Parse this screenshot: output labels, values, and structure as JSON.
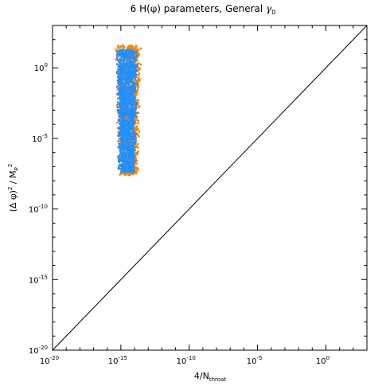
{
  "chart_data": {
    "type": "scatter",
    "title": {
      "pre": "6 H(",
      "phi": "φ",
      "mid": ") parameters, General ",
      "gamma": "γ",
      "sub": "0"
    },
    "xlabel": {
      "main": "4/N",
      "sub": "throat"
    },
    "ylabel": {
      "pre": "(Δ ",
      "phi": "φ",
      "mid": ")",
      "sup": "2",
      "slash": " / M",
      "sub": "P",
      "sup2": "2"
    },
    "xscale": "log",
    "yscale": "log",
    "xlim": [
      1e-20,
      1000.0
    ],
    "ylim": [
      1e-20,
      1000.0
    ],
    "x_ticks": [
      {
        "exp": -20,
        "base": "10",
        "pow": "-20"
      },
      {
        "exp": -15,
        "base": "10",
        "pow": "-15"
      },
      {
        "exp": -10,
        "base": "10",
        "pow": "-10"
      },
      {
        "exp": -5,
        "base": "10",
        "pow": "-5"
      },
      {
        "exp": 0,
        "base": "10",
        "pow": "0"
      }
    ],
    "y_ticks": [
      {
        "exp": -20,
        "base": "10",
        "pow": "-20"
      },
      {
        "exp": -15,
        "base": "10",
        "pow": "-15"
      },
      {
        "exp": -10,
        "base": "10",
        "pow": "-10"
      },
      {
        "exp": -5,
        "base": "10",
        "pow": "-5"
      },
      {
        "exp": 0,
        "base": "10",
        "pow": "0"
      }
    ],
    "reference_line": {
      "type": "y=x",
      "color": "#000000"
    },
    "series": [
      {
        "color": "#ff8000",
        "log10_x_range": [
          -15.3,
          -13.6
        ],
        "log10_y_range": [
          -7.6,
          1.6
        ],
        "approx_points": 1400
      },
      {
        "color": "#1e90ff",
        "log10_x_range": [
          -15.3,
          -13.8
        ],
        "log10_y_range": [
          -7.4,
          1.3
        ],
        "approx_points": 1400
      }
    ],
    "grid": false,
    "legend": "none"
  }
}
